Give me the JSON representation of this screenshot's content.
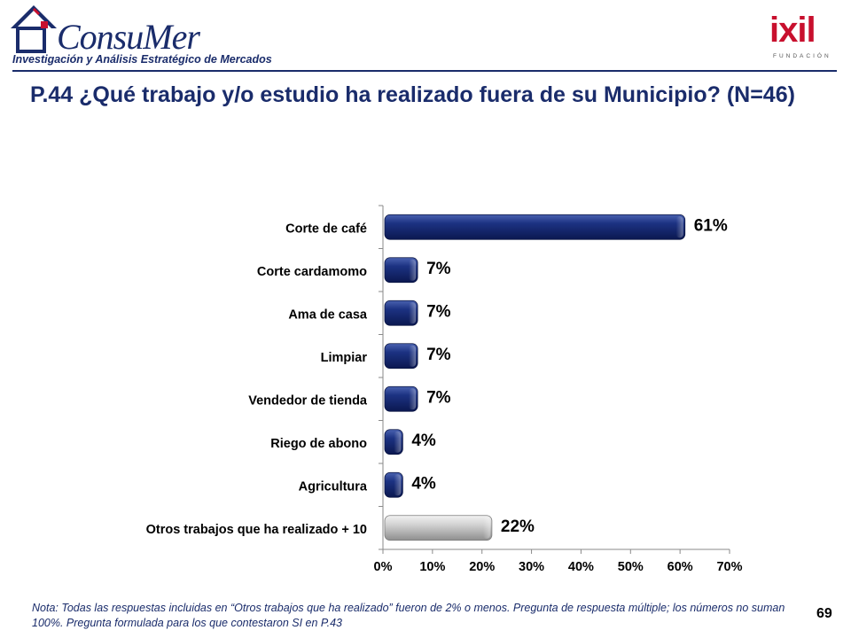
{
  "header": {
    "logo_name": "ConsuMer",
    "logo_tagline": "Investigación y Análisis Estratégico de Mercados",
    "partner_logo": "ixil",
    "partner_sub": "FUNDACIÓN",
    "brand_color": "#1a2c6b",
    "partner_color": "#c8102e"
  },
  "title": "P.44 ¿Qué trabajo y/o estudio ha realizado fuera de su Municipio? (N=46)",
  "footer": {
    "note": "Nota: Todas las respuestas incluidas en “Otros trabajos que ha realizado” fueron de 2% o menos. Pregunta de respuesta múltiple; los números no suman 100%. Pregunta formulada para los que contestaron SI en P.43",
    "page_number": "69"
  },
  "chart_data": {
    "type": "bar",
    "orientation": "horizontal",
    "categories": [
      "Corte de café",
      "Corte cardamomo",
      "Ama de casa",
      "Limpiar",
      "Vendedor de tienda",
      "Riego de abono",
      "Agricultura",
      "Otros trabajos que ha realizado + 10"
    ],
    "values": [
      61,
      7,
      7,
      7,
      7,
      4,
      4,
      22
    ],
    "value_labels": [
      "61%",
      "7%",
      "7%",
      "7%",
      "7%",
      "4%",
      "4%",
      "22%"
    ],
    "bar_colors": [
      "#15296e",
      "#15296e",
      "#15296e",
      "#15296e",
      "#15296e",
      "#15296e",
      "#15296e",
      "#c4c4c4"
    ],
    "xlim": [
      0,
      70
    ],
    "xticks": [
      "0%",
      "10%",
      "20%",
      "30%",
      "40%",
      "50%",
      "60%",
      "70%"
    ],
    "grid": false,
    "legend": "none"
  }
}
